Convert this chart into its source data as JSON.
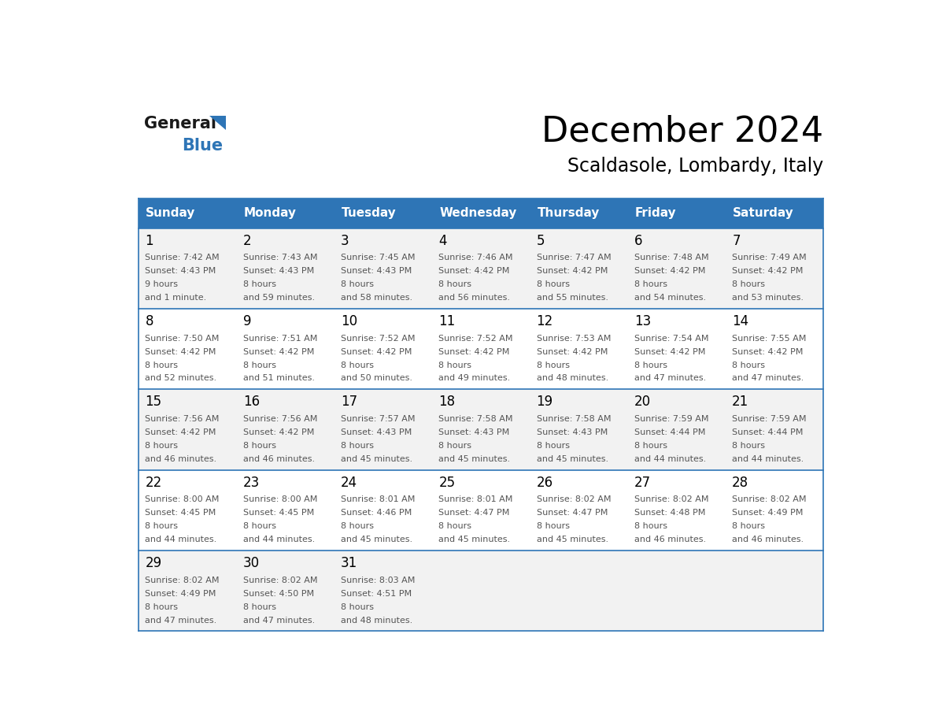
{
  "title": "December 2024",
  "subtitle": "Scaldasole, Lombardy, Italy",
  "header_bg": "#2E75B6",
  "header_text": "#FFFFFF",
  "header_days": [
    "Sunday",
    "Monday",
    "Tuesday",
    "Wednesday",
    "Thursday",
    "Friday",
    "Saturday"
  ],
  "row_bg_odd": "#F2F2F2",
  "row_bg_even": "#FFFFFF",
  "cell_border": "#2E75B6",
  "day_num_color": "#000000",
  "text_color": "#555555",
  "logo_general_color": "#1a1a1a",
  "logo_blue_color": "#2E75B6",
  "days": [
    {
      "day": 1,
      "col": 0,
      "row": 0,
      "sunrise": "7:42 AM",
      "sunset": "4:43 PM",
      "daylight": "9 hours and 1 minute."
    },
    {
      "day": 2,
      "col": 1,
      "row": 0,
      "sunrise": "7:43 AM",
      "sunset": "4:43 PM",
      "daylight": "8 hours and 59 minutes."
    },
    {
      "day": 3,
      "col": 2,
      "row": 0,
      "sunrise": "7:45 AM",
      "sunset": "4:43 PM",
      "daylight": "8 hours and 58 minutes."
    },
    {
      "day": 4,
      "col": 3,
      "row": 0,
      "sunrise": "7:46 AM",
      "sunset": "4:42 PM",
      "daylight": "8 hours and 56 minutes."
    },
    {
      "day": 5,
      "col": 4,
      "row": 0,
      "sunrise": "7:47 AM",
      "sunset": "4:42 PM",
      "daylight": "8 hours and 55 minutes."
    },
    {
      "day": 6,
      "col": 5,
      "row": 0,
      "sunrise": "7:48 AM",
      "sunset": "4:42 PM",
      "daylight": "8 hours and 54 minutes."
    },
    {
      "day": 7,
      "col": 6,
      "row": 0,
      "sunrise": "7:49 AM",
      "sunset": "4:42 PM",
      "daylight": "8 hours and 53 minutes."
    },
    {
      "day": 8,
      "col": 0,
      "row": 1,
      "sunrise": "7:50 AM",
      "sunset": "4:42 PM",
      "daylight": "8 hours and 52 minutes."
    },
    {
      "day": 9,
      "col": 1,
      "row": 1,
      "sunrise": "7:51 AM",
      "sunset": "4:42 PM",
      "daylight": "8 hours and 51 minutes."
    },
    {
      "day": 10,
      "col": 2,
      "row": 1,
      "sunrise": "7:52 AM",
      "sunset": "4:42 PM",
      "daylight": "8 hours and 50 minutes."
    },
    {
      "day": 11,
      "col": 3,
      "row": 1,
      "sunrise": "7:52 AM",
      "sunset": "4:42 PM",
      "daylight": "8 hours and 49 minutes."
    },
    {
      "day": 12,
      "col": 4,
      "row": 1,
      "sunrise": "7:53 AM",
      "sunset": "4:42 PM",
      "daylight": "8 hours and 48 minutes."
    },
    {
      "day": 13,
      "col": 5,
      "row": 1,
      "sunrise": "7:54 AM",
      "sunset": "4:42 PM",
      "daylight": "8 hours and 47 minutes."
    },
    {
      "day": 14,
      "col": 6,
      "row": 1,
      "sunrise": "7:55 AM",
      "sunset": "4:42 PM",
      "daylight": "8 hours and 47 minutes."
    },
    {
      "day": 15,
      "col": 0,
      "row": 2,
      "sunrise": "7:56 AM",
      "sunset": "4:42 PM",
      "daylight": "8 hours and 46 minutes."
    },
    {
      "day": 16,
      "col": 1,
      "row": 2,
      "sunrise": "7:56 AM",
      "sunset": "4:42 PM",
      "daylight": "8 hours and 46 minutes."
    },
    {
      "day": 17,
      "col": 2,
      "row": 2,
      "sunrise": "7:57 AM",
      "sunset": "4:43 PM",
      "daylight": "8 hours and 45 minutes."
    },
    {
      "day": 18,
      "col": 3,
      "row": 2,
      "sunrise": "7:58 AM",
      "sunset": "4:43 PM",
      "daylight": "8 hours and 45 minutes."
    },
    {
      "day": 19,
      "col": 4,
      "row": 2,
      "sunrise": "7:58 AM",
      "sunset": "4:43 PM",
      "daylight": "8 hours and 45 minutes."
    },
    {
      "day": 20,
      "col": 5,
      "row": 2,
      "sunrise": "7:59 AM",
      "sunset": "4:44 PM",
      "daylight": "8 hours and 44 minutes."
    },
    {
      "day": 21,
      "col": 6,
      "row": 2,
      "sunrise": "7:59 AM",
      "sunset": "4:44 PM",
      "daylight": "8 hours and 44 minutes."
    },
    {
      "day": 22,
      "col": 0,
      "row": 3,
      "sunrise": "8:00 AM",
      "sunset": "4:45 PM",
      "daylight": "8 hours and 44 minutes."
    },
    {
      "day": 23,
      "col": 1,
      "row": 3,
      "sunrise": "8:00 AM",
      "sunset": "4:45 PM",
      "daylight": "8 hours and 44 minutes."
    },
    {
      "day": 24,
      "col": 2,
      "row": 3,
      "sunrise": "8:01 AM",
      "sunset": "4:46 PM",
      "daylight": "8 hours and 45 minutes."
    },
    {
      "day": 25,
      "col": 3,
      "row": 3,
      "sunrise": "8:01 AM",
      "sunset": "4:47 PM",
      "daylight": "8 hours and 45 minutes."
    },
    {
      "day": 26,
      "col": 4,
      "row": 3,
      "sunrise": "8:02 AM",
      "sunset": "4:47 PM",
      "daylight": "8 hours and 45 minutes."
    },
    {
      "day": 27,
      "col": 5,
      "row": 3,
      "sunrise": "8:02 AM",
      "sunset": "4:48 PM",
      "daylight": "8 hours and 46 minutes."
    },
    {
      "day": 28,
      "col": 6,
      "row": 3,
      "sunrise": "8:02 AM",
      "sunset": "4:49 PM",
      "daylight": "8 hours and 46 minutes."
    },
    {
      "day": 29,
      "col": 0,
      "row": 4,
      "sunrise": "8:02 AM",
      "sunset": "4:49 PM",
      "daylight": "8 hours and 47 minutes."
    },
    {
      "day": 30,
      "col": 1,
      "row": 4,
      "sunrise": "8:02 AM",
      "sunset": "4:50 PM",
      "daylight": "8 hours and 47 minutes."
    },
    {
      "day": 31,
      "col": 2,
      "row": 4,
      "sunrise": "8:03 AM",
      "sunset": "4:51 PM",
      "daylight": "8 hours and 48 minutes."
    }
  ]
}
